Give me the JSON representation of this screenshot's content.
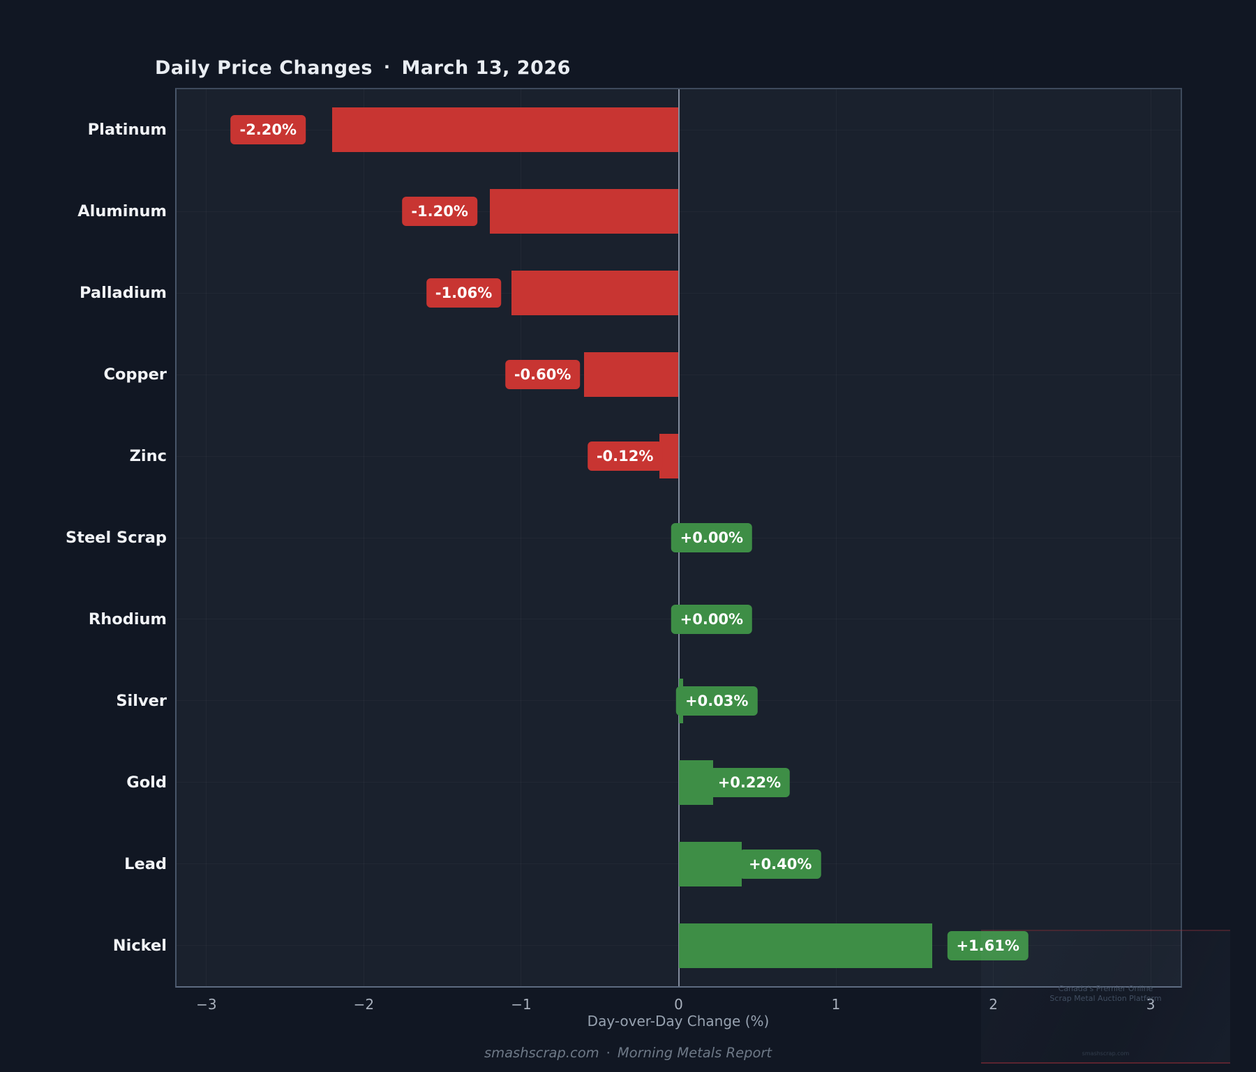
{
  "header": {
    "title": "Daily Price Changes",
    "separator": "·",
    "date": "March 13, 2026"
  },
  "chart_data": {
    "type": "bar",
    "orientation": "horizontal",
    "title": "Daily Price Changes · March 13, 2026",
    "categories": [
      "Platinum",
      "Aluminum",
      "Palladium",
      "Copper",
      "Zinc",
      "Steel Scrap",
      "Rhodium",
      "Silver",
      "Gold",
      "Lead",
      "Nickel"
    ],
    "values": [
      -2.2,
      -1.2,
      -1.06,
      -0.6,
      -0.12,
      0.0,
      0.0,
      0.03,
      0.22,
      0.4,
      1.61
    ],
    "bar_labels": [
      "-2.20%",
      "-1.20%",
      "-1.06%",
      "-0.60%",
      "-0.12%",
      "+0.00%",
      "+0.00%",
      "+0.03%",
      "+0.22%",
      "+0.40%",
      "+1.61%"
    ],
    "xlabel": "Day-over-Day Change (%)",
    "xlim": [
      -3.19,
      3.19
    ],
    "xticks": [
      {
        "value": -3,
        "label": "−3"
      },
      {
        "value": -2,
        "label": "−2"
      },
      {
        "value": -1,
        "label": "−1"
      },
      {
        "value": 0,
        "label": "0"
      },
      {
        "value": 1,
        "label": "1"
      },
      {
        "value": 2,
        "label": "2"
      },
      {
        "value": 3,
        "label": "3"
      }
    ],
    "grid": true,
    "legend": false,
    "colors": {
      "negative": "#c83532",
      "positive": "#3e8e46"
    }
  },
  "theme": {
    "figure_bg": "#111723",
    "plot_bg": "#1a212d",
    "zero_line": "#828b9c",
    "label_text": "#ffffff"
  },
  "footer": {
    "source": "smashscrap.com",
    "separator": "·",
    "report": "Morning Metals Report"
  },
  "watermark": {
    "line1": "Canada's Premier Online",
    "line2": "Scrap Metal Auction Platform",
    "line3": "smashscrap.com"
  }
}
